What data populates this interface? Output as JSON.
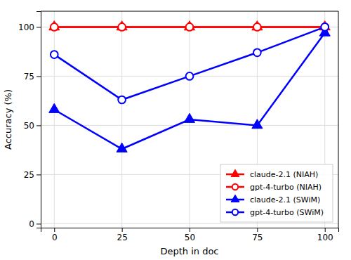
{
  "chart_data": {
    "type": "line",
    "xlabel": "Depth in doc",
    "ylabel": "Accuracy (%)",
    "x": [
      0,
      25,
      50,
      75,
      100
    ],
    "series": [
      {
        "name": "claude-2.1 (NIAH)",
        "color": "#ff0000",
        "marker": "triangle",
        "values": [
          100,
          100,
          100,
          100,
          100
        ]
      },
      {
        "name": "gpt-4-turbo (NIAH)",
        "color": "#ff0000",
        "marker": "circle",
        "values": [
          100,
          100,
          100,
          100,
          100
        ]
      },
      {
        "name": "claude-2.1 (SWiM)",
        "color": "#0000ff",
        "marker": "triangle",
        "values": [
          58,
          38,
          53,
          50,
          97
        ]
      },
      {
        "name": "gpt-4-turbo (SWiM)",
        "color": "#0000ff",
        "marker": "circle",
        "values": [
          86,
          63,
          75,
          87,
          100
        ]
      }
    ],
    "xlim": [
      -5,
      105
    ],
    "ylim": [
      -2,
      108
    ],
    "xticks": [
      0,
      25,
      50,
      75,
      100
    ],
    "yticks": [
      0,
      25,
      50,
      75,
      100
    ],
    "grid": true,
    "legend": "lower right"
  }
}
